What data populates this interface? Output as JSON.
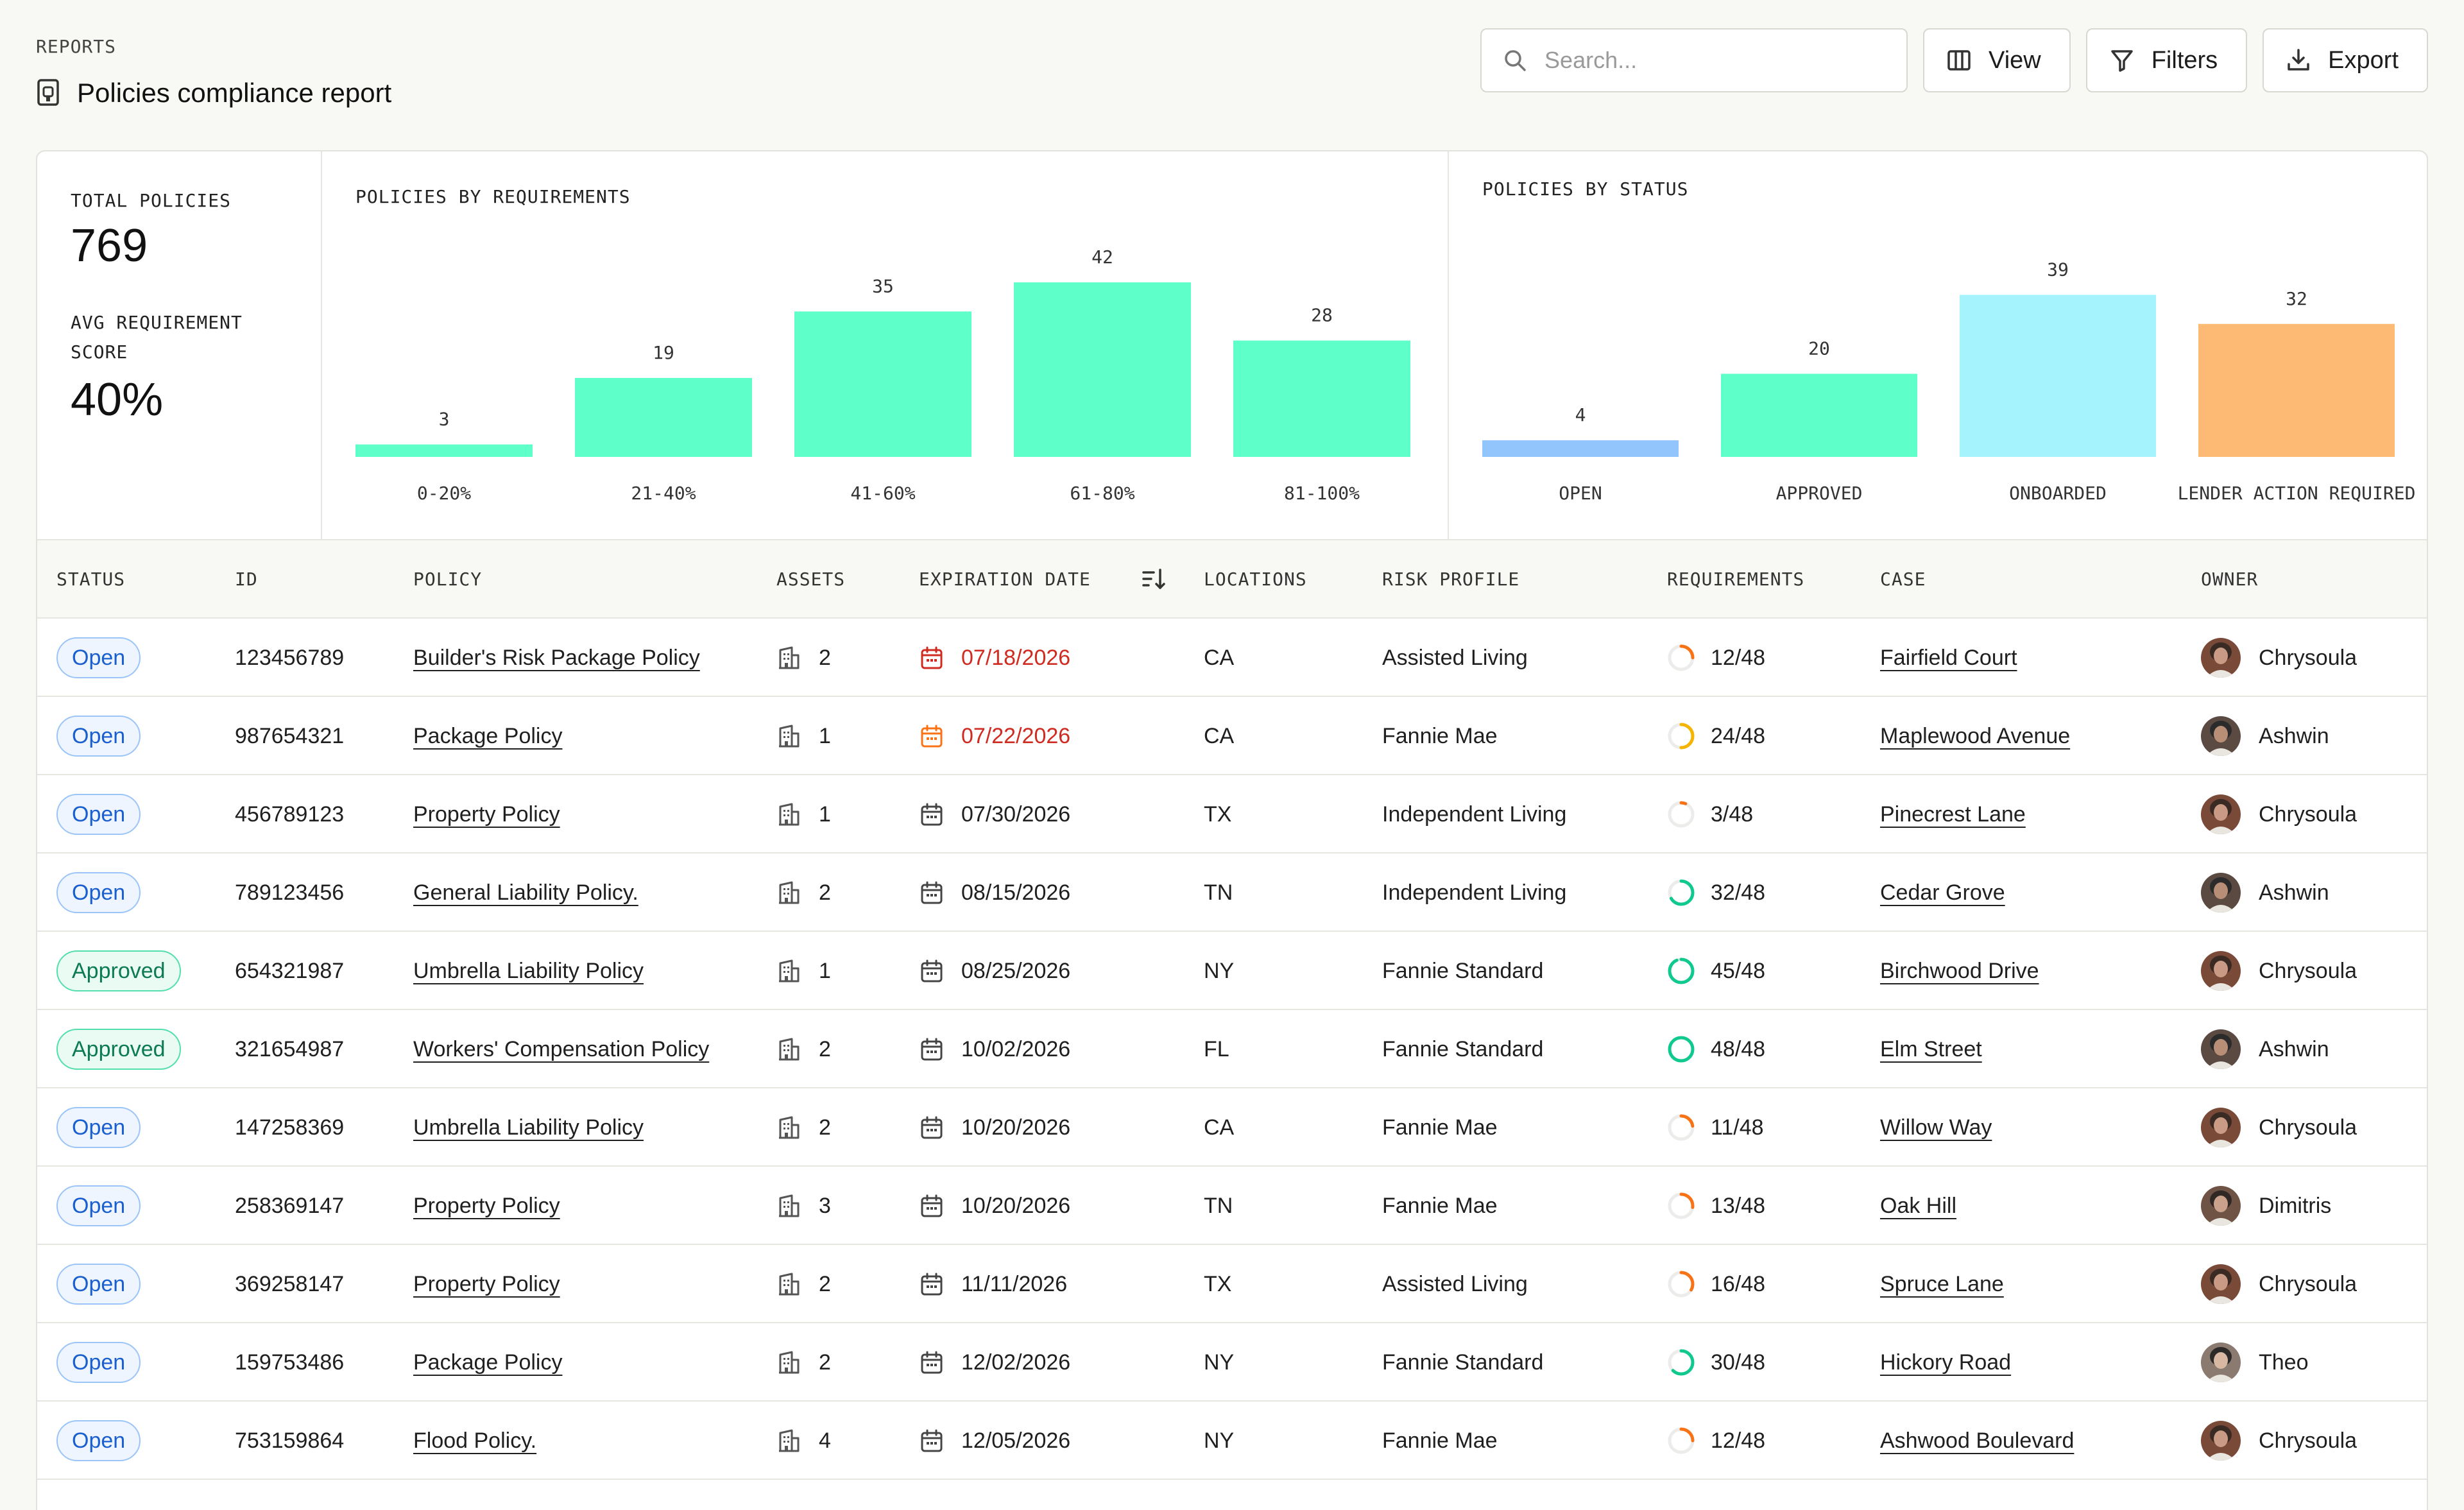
{
  "breadcrumb": "REPORTS",
  "page_title": "Policies compliance report",
  "toolbar": {
    "search_placeholder": "Search...",
    "view_label": "View",
    "filters_label": "Filters",
    "export_label": "Export"
  },
  "kpis": {
    "total_label": "TOTAL POLICIES",
    "total_value": "769",
    "avg_label_line1": "AVG REQUIREMENT",
    "avg_label_line2": "SCORE",
    "avg_value": "40%"
  },
  "chart_data": [
    {
      "type": "bar",
      "title": "POLICIES BY REQUIREMENTS",
      "categories": [
        "0-20%",
        "21-40%",
        "41-60%",
        "61-80%",
        "81-100%"
      ],
      "values": [
        3,
        19,
        35,
        42,
        28
      ],
      "colors": [
        "#5effc8",
        "#5effc8",
        "#5effc8",
        "#5effc8",
        "#5effc8"
      ],
      "ylim": [
        0,
        42
      ]
    },
    {
      "type": "bar",
      "title": "POLICIES BY STATUS",
      "categories": [
        "OPEN",
        "APPROVED",
        "ONBOARDED",
        "LENDER ACTION REQUIRED"
      ],
      "values": [
        4,
        20,
        39,
        32
      ],
      "colors": [
        "#93c5fd",
        "#5effc8",
        "#a5f3fc",
        "#fdba74"
      ],
      "ylim": [
        0,
        42
      ]
    }
  ],
  "table": {
    "columns": [
      "STATUS",
      "ID",
      "POLICY",
      "ASSETS",
      "EXPIRATION DATE",
      "LOCATIONS",
      "RISK PROFILE",
      "REQUIREMENTS",
      "CASE",
      "OWNER"
    ],
    "rows": [
      {
        "status": "Open",
        "id": "123456789",
        "policy": "Builder's Risk Package Policy",
        "assets": "2",
        "date": "07/18/2026",
        "date_state": "expired",
        "location": "CA",
        "risk": "Assisted Living",
        "req": "12/48",
        "req_done": 12,
        "case": "Fairfield Court",
        "owner": "Chrysoula"
      },
      {
        "status": "Open",
        "id": "987654321",
        "policy": "Package Policy",
        "assets": "1",
        "date": "07/22/2026",
        "date_state": "warning",
        "location": "CA",
        "risk": "Fannie Mae",
        "req": "24/48",
        "req_done": 24,
        "case": "Maplewood Avenue",
        "owner": "Ashwin"
      },
      {
        "status": "Open",
        "id": "456789123",
        "policy": "Property Policy",
        "assets": "1",
        "date": "07/30/2026",
        "date_state": "normal",
        "location": "TX",
        "risk": "Independent Living",
        "req": "3/48",
        "req_done": 3,
        "case": "Pinecrest Lane",
        "owner": "Chrysoula"
      },
      {
        "status": "Open",
        "id": "789123456",
        "policy": "General Liability Policy.",
        "assets": "2",
        "date": "08/15/2026",
        "date_state": "normal",
        "location": "TN",
        "risk": "Independent Living",
        "req": "32/48",
        "req_done": 32,
        "case": "Cedar Grove",
        "owner": "Ashwin"
      },
      {
        "status": "Approved",
        "id": "654321987",
        "policy": "Umbrella Liability Policy",
        "assets": "1",
        "date": "08/25/2026",
        "date_state": "normal",
        "location": "NY",
        "risk": "Fannie Standard",
        "req": "45/48",
        "req_done": 45,
        "case": "Birchwood Drive",
        "owner": "Chrysoula"
      },
      {
        "status": "Approved",
        "id": "321654987",
        "policy": "Workers' Compensation Policy",
        "assets": "2",
        "date": "10/02/2026",
        "date_state": "normal",
        "location": "FL",
        "risk": "Fannie Standard",
        "req": "48/48",
        "req_done": 48,
        "case": "Elm Street",
        "owner": "Ashwin"
      },
      {
        "status": "Open",
        "id": "147258369",
        "policy": "Umbrella Liability Policy",
        "assets": "2",
        "date": "10/20/2026",
        "date_state": "normal",
        "location": "CA",
        "risk": "Fannie Mae",
        "req": "11/48",
        "req_done": 11,
        "case": "Willow Way",
        "owner": "Chrysoula"
      },
      {
        "status": "Open",
        "id": "258369147",
        "policy": "Property Policy",
        "assets": "3",
        "date": "10/20/2026",
        "date_state": "normal",
        "location": "TN",
        "risk": "Fannie Mae",
        "req": "13/48",
        "req_done": 13,
        "case": "Oak Hill",
        "owner": "Dimitris"
      },
      {
        "status": "Open",
        "id": "369258147",
        "policy": "Property Policy",
        "assets": "2",
        "date": "11/11/2026",
        "date_state": "normal",
        "location": "TX",
        "risk": "Assisted Living",
        "req": "16/48",
        "req_done": 16,
        "case": "Spruce Lane",
        "owner": "Chrysoula"
      },
      {
        "status": "Open",
        "id": "159753486",
        "policy": "Package Policy",
        "assets": "2",
        "date": "12/02/2026",
        "date_state": "normal",
        "location": "NY",
        "risk": "Fannie Standard",
        "req": "30/48",
        "req_done": 30,
        "case": "Hickory Road",
        "owner": "Theo"
      },
      {
        "status": "Open",
        "id": "753159864",
        "policy": "Flood Policy.",
        "assets": "4",
        "date": "12/05/2026",
        "date_state": "normal",
        "location": "NY",
        "risk": "Fannie Mae",
        "req": "12/48",
        "req_done": 12,
        "case": "Ashwood Boulevard",
        "owner": "Chrysoula"
      }
    ]
  }
}
